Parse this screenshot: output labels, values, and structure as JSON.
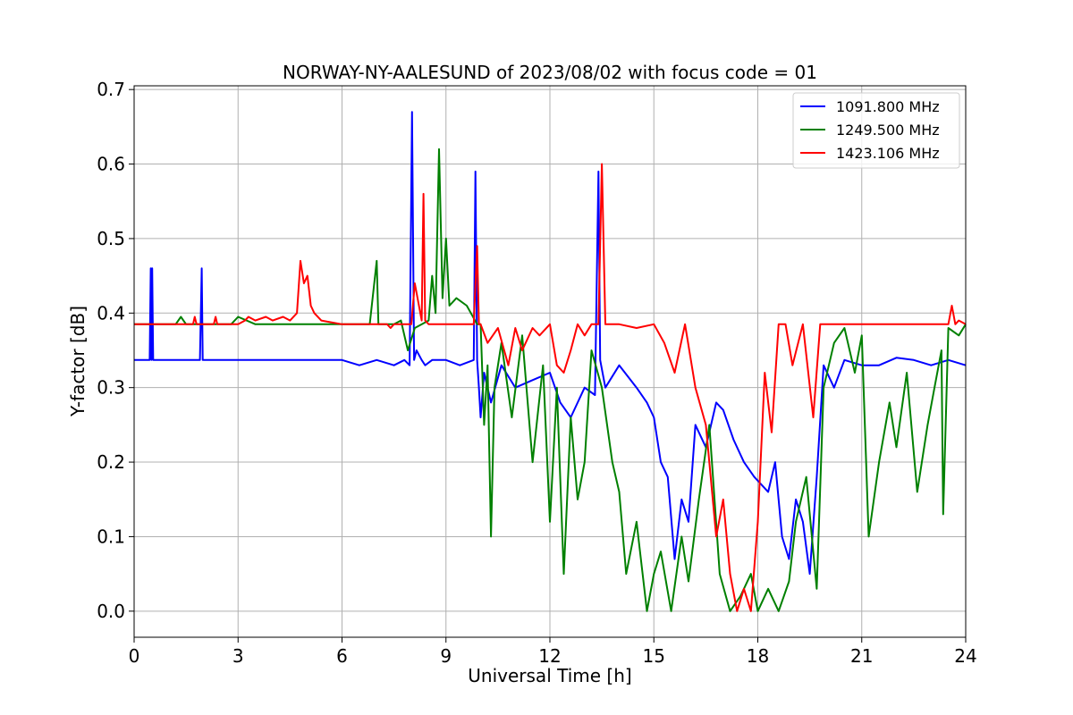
{
  "chart_data": {
    "type": "line",
    "title": "NORWAY-NY-AALESUND of 2023/08/02 with focus code = 01",
    "xlabel": "Universal Time [h]",
    "ylabel": "Y-factor [dB]",
    "xlim": [
      0,
      24
    ],
    "ylim": [
      -0.035,
      0.705
    ],
    "xticks": [
      0,
      3,
      6,
      9,
      12,
      15,
      18,
      21,
      24
    ],
    "xtick_labels": [
      "0",
      "3",
      "6",
      "9",
      "12",
      "15",
      "18",
      "21",
      "24"
    ],
    "yticks": [
      0.0,
      0.1,
      0.2,
      0.3,
      0.4,
      0.5,
      0.6,
      0.7
    ],
    "ytick_labels": [
      "0.0",
      "0.1",
      "0.2",
      "0.3",
      "0.4",
      "0.5",
      "0.6",
      "0.7"
    ],
    "grid": true,
    "legend_position": "top-right",
    "series": [
      {
        "name": "1091.800 MHz",
        "color": "#0000ff",
        "x": [
          0,
          0.45,
          0.48,
          0.5,
          0.52,
          0.55,
          1.0,
          1.9,
          1.95,
          1.98,
          2.05,
          3.0,
          4.0,
          5.0,
          6.0,
          6.5,
          7.0,
          7.5,
          7.8,
          7.95,
          8.02,
          8.08,
          8.15,
          8.3,
          8.4,
          8.6,
          9.0,
          9.4,
          9.8,
          9.85,
          9.9,
          9.95,
          10.0,
          10.1,
          10.3,
          10.6,
          11.0,
          11.5,
          12.0,
          12.3,
          12.6,
          13.0,
          13.3,
          13.4,
          13.45,
          13.6,
          14.0,
          14.5,
          14.8,
          15.0,
          15.2,
          15.4,
          15.6,
          15.8,
          16.0,
          16.2,
          16.5,
          16.8,
          17.0,
          17.3,
          17.6,
          17.9,
          18.1,
          18.3,
          18.5,
          18.7,
          18.9,
          19.1,
          19.3,
          19.5,
          19.7,
          19.9,
          20.2,
          20.5,
          21.0,
          21.5,
          22.0,
          22.5,
          23.0,
          23.5,
          24.0
        ],
        "y": [
          0.337,
          0.337,
          0.46,
          0.337,
          0.46,
          0.337,
          0.337,
          0.337,
          0.46,
          0.337,
          0.337,
          0.337,
          0.337,
          0.337,
          0.337,
          0.33,
          0.337,
          0.33,
          0.337,
          0.33,
          0.67,
          0.337,
          0.35,
          0.337,
          0.33,
          0.337,
          0.337,
          0.33,
          0.337,
          0.59,
          0.337,
          0.3,
          0.26,
          0.32,
          0.28,
          0.33,
          0.3,
          0.31,
          0.32,
          0.28,
          0.26,
          0.3,
          0.29,
          0.59,
          0.337,
          0.3,
          0.33,
          0.3,
          0.28,
          0.26,
          0.2,
          0.18,
          0.07,
          0.15,
          0.12,
          0.25,
          0.22,
          0.28,
          0.27,
          0.23,
          0.2,
          0.18,
          0.17,
          0.16,
          0.2,
          0.1,
          0.07,
          0.15,
          0.12,
          0.05,
          0.18,
          0.33,
          0.3,
          0.337,
          0.33,
          0.33,
          0.34,
          0.337,
          0.33,
          0.337,
          0.33
        ]
      },
      {
        "name": "1249.500 MHz",
        "color": "#008000",
        "x": [
          0,
          1.2,
          1.35,
          1.5,
          2.8,
          3.0,
          3.5,
          6.8,
          7.0,
          7.05,
          7.1,
          7.5,
          7.7,
          7.9,
          8.1,
          8.5,
          8.6,
          8.7,
          8.8,
          8.9,
          9.0,
          9.1,
          9.3,
          9.6,
          9.9,
          10.0,
          10.1,
          10.2,
          10.3,
          10.4,
          10.6,
          10.9,
          11.2,
          11.5,
          11.8,
          12.0,
          12.2,
          12.4,
          12.6,
          12.8,
          13.0,
          13.2,
          13.5,
          13.8,
          14.0,
          14.2,
          14.5,
          14.8,
          15.0,
          15.2,
          15.5,
          15.8,
          16.0,
          16.3,
          16.6,
          16.9,
          17.2,
          17.5,
          17.8,
          18.0,
          18.3,
          18.6,
          18.9,
          19.1,
          19.4,
          19.7,
          19.9,
          20.2,
          20.5,
          20.8,
          21.0,
          21.2,
          21.5,
          21.8,
          22.0,
          22.3,
          22.6,
          22.9,
          23.1,
          23.3,
          23.35,
          23.5,
          23.8,
          24.0
        ],
        "y": [
          0.385,
          0.385,
          0.395,
          0.385,
          0.385,
          0.395,
          0.385,
          0.385,
          0.47,
          0.385,
          0.385,
          0.385,
          0.39,
          0.35,
          0.38,
          0.39,
          0.45,
          0.4,
          0.62,
          0.42,
          0.5,
          0.41,
          0.42,
          0.41,
          0.385,
          0.385,
          0.25,
          0.33,
          0.1,
          0.3,
          0.36,
          0.26,
          0.37,
          0.2,
          0.33,
          0.12,
          0.3,
          0.05,
          0.26,
          0.15,
          0.2,
          0.35,
          0.3,
          0.2,
          0.16,
          0.05,
          0.12,
          0.0,
          0.05,
          0.08,
          0.0,
          0.1,
          0.04,
          0.15,
          0.25,
          0.05,
          0.0,
          0.02,
          0.05,
          0.0,
          0.03,
          0.0,
          0.04,
          0.12,
          0.18,
          0.03,
          0.3,
          0.36,
          0.38,
          0.32,
          0.37,
          0.1,
          0.2,
          0.28,
          0.22,
          0.32,
          0.16,
          0.25,
          0.3,
          0.35,
          0.13,
          0.38,
          0.37,
          0.385
        ]
      },
      {
        "name": "1423.106 MHz",
        "color": "#ff0000",
        "x": [
          0,
          1.7,
          1.75,
          1.8,
          2.3,
          2.35,
          2.4,
          3.0,
          3.2,
          3.3,
          3.5,
          3.8,
          4.0,
          4.3,
          4.5,
          4.7,
          4.8,
          4.9,
          5.0,
          5.1,
          5.2,
          5.4,
          6.0,
          7.0,
          7.3,
          7.4,
          7.5,
          8.0,
          8.1,
          8.3,
          8.35,
          8.4,
          8.5,
          9.0,
          9.8,
          9.9,
          9.95,
          10.0,
          10.2,
          10.5,
          10.8,
          11.0,
          11.2,
          11.5,
          11.7,
          12.0,
          12.2,
          12.4,
          12.6,
          12.8,
          13.0,
          13.2,
          13.4,
          13.5,
          13.6,
          14.0,
          14.5,
          15.0,
          15.3,
          15.6,
          15.9,
          16.2,
          16.5,
          16.8,
          17.0,
          17.2,
          17.4,
          17.6,
          17.8,
          18.0,
          18.2,
          18.4,
          18.6,
          18.8,
          19.0,
          19.3,
          19.6,
          19.8,
          20.0,
          20.5,
          21.0,
          21.5,
          22.0,
          22.5,
          23.0,
          23.5,
          23.6,
          23.7,
          23.8,
          24.0
        ],
        "y": [
          0.385,
          0.385,
          0.395,
          0.385,
          0.385,
          0.395,
          0.385,
          0.385,
          0.39,
          0.395,
          0.39,
          0.395,
          0.39,
          0.395,
          0.39,
          0.4,
          0.47,
          0.44,
          0.45,
          0.41,
          0.4,
          0.39,
          0.385,
          0.385,
          0.385,
          0.38,
          0.385,
          0.385,
          0.44,
          0.39,
          0.56,
          0.39,
          0.385,
          0.385,
          0.385,
          0.49,
          0.385,
          0.385,
          0.36,
          0.38,
          0.33,
          0.38,
          0.35,
          0.38,
          0.37,
          0.385,
          0.33,
          0.32,
          0.35,
          0.385,
          0.37,
          0.385,
          0.385,
          0.6,
          0.385,
          0.385,
          0.38,
          0.385,
          0.36,
          0.32,
          0.385,
          0.3,
          0.25,
          0.1,
          0.15,
          0.05,
          0.0,
          0.03,
          0.0,
          0.12,
          0.32,
          0.24,
          0.385,
          0.385,
          0.33,
          0.385,
          0.26,
          0.385,
          0.385,
          0.385,
          0.385,
          0.385,
          0.385,
          0.385,
          0.385,
          0.385,
          0.41,
          0.385,
          0.39,
          0.385
        ]
      }
    ]
  }
}
